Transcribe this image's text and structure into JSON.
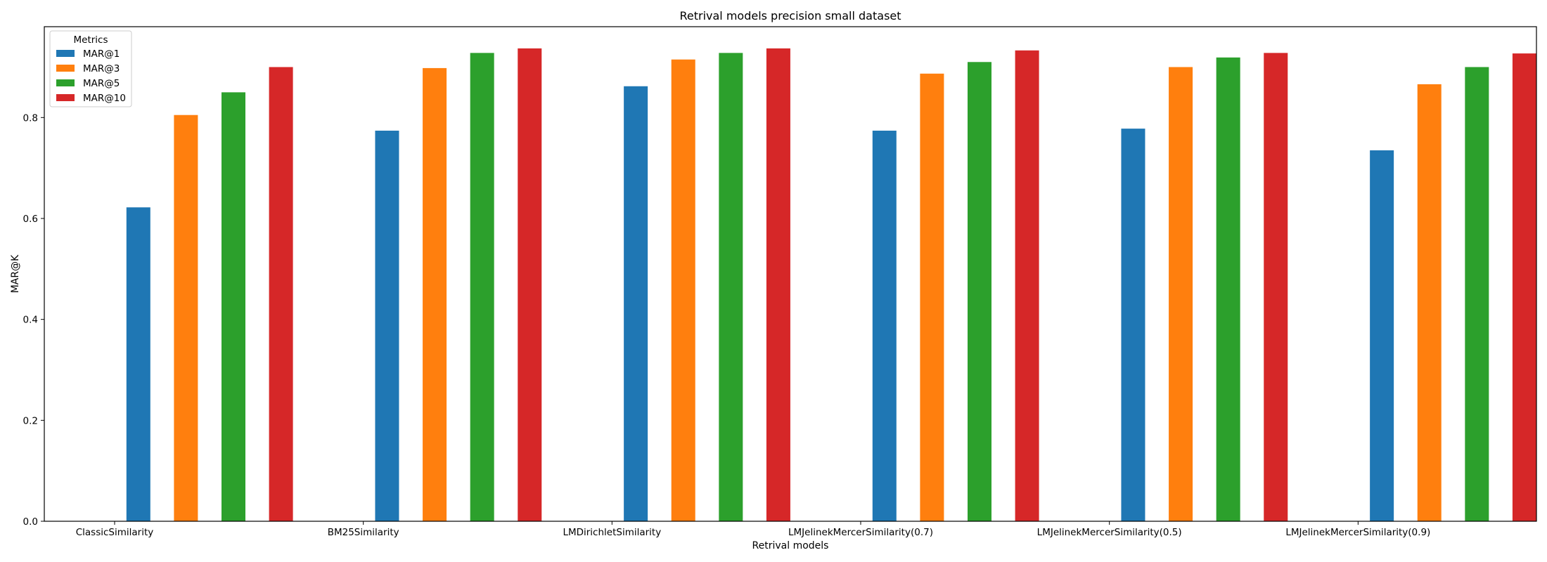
{
  "chart_data": {
    "type": "bar",
    "title": "Retrival models precision small dataset",
    "xlabel": "Retrival models",
    "ylabel": "MAR@K",
    "ylim": [
      0,
      0.98
    ],
    "yticks": [
      "0.0",
      "0.2",
      "0.4",
      "0.6",
      "0.8"
    ],
    "grid": false,
    "categories": [
      "ClassicSimilarity",
      "BM25Similarity",
      "LMDirichletSimilarity",
      "LMJelinekMercerSimilarity(0.7)",
      "LMJelinekMercerSimilarity(0.5)",
      "LMJelinekMercerSimilarity(0.9)"
    ],
    "legend": {
      "title": "Metrics",
      "placement": "top-left"
    },
    "series": [
      {
        "name": "MAR@1",
        "color": "#1f77b4",
        "values": [
          0.622,
          0.774,
          0.862,
          0.774,
          0.778,
          0.735
        ]
      },
      {
        "name": "MAR@3",
        "color": "#ff7f0e",
        "values": [
          0.805,
          0.898,
          0.915,
          0.887,
          0.9,
          0.866
        ]
      },
      {
        "name": "MAR@5",
        "color": "#2ca02c",
        "values": [
          0.85,
          0.928,
          0.928,
          0.91,
          0.919,
          0.9
        ]
      },
      {
        "name": "MAR@10",
        "color": "#d62728",
        "values": [
          0.9,
          0.937,
          0.937,
          0.933,
          0.928,
          0.927
        ]
      }
    ]
  }
}
